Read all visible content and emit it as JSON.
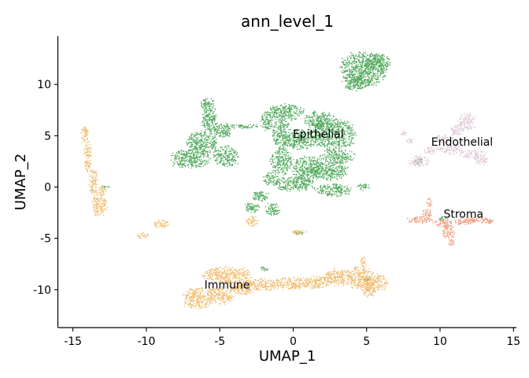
{
  "chart_data": {
    "type": "scatter",
    "title": "ann_level_1",
    "xlabel": "UMAP_1",
    "ylabel": "UMAP_2",
    "xlim": [
      -16,
      15.2
    ],
    "ylim": [
      -13.7,
      14.7
    ],
    "xticks": [
      -15,
      -10,
      -5,
      0,
      5,
      10,
      15
    ],
    "yticks": [
      -10,
      -5,
      0,
      5,
      10
    ],
    "grid": false,
    "legend": "none",
    "series": [
      {
        "color": "#4fa85a",
        "blobs": [
          {
            "x": 4.8,
            "y": 11.5,
            "rx": 1.5,
            "ry": 1.6
          },
          {
            "x": 5.8,
            "y": 12.2,
            "rx": 0.8,
            "ry": 0.8
          },
          {
            "x": 4.3,
            "y": 10.2,
            "rx": 0.9,
            "ry": 0.8
          },
          {
            "x": -7.0,
            "y": 2.8,
            "rx": 1.3,
            "ry": 0.9
          },
          {
            "x": -6.2,
            "y": 4.3,
            "rx": 1.0,
            "ry": 1.1
          },
          {
            "x": -5.7,
            "y": 6.5,
            "rx": 0.5,
            "ry": 1.2
          },
          {
            "x": -5.8,
            "y": 8.0,
            "rx": 0.5,
            "ry": 0.6
          },
          {
            "x": -4.8,
            "y": 5.5,
            "rx": 0.6,
            "ry": 0.7
          },
          {
            "x": -4.6,
            "y": 3.0,
            "rx": 0.8,
            "ry": 1.0
          },
          {
            "x": -3.5,
            "y": 5.9,
            "rx": 1.2,
            "ry": 0.2
          },
          {
            "x": -1.8,
            "y": 6.4,
            "rx": 0.4,
            "ry": 0.9
          },
          {
            "x": -0.5,
            "y": 7.3,
            "rx": 1.2,
            "ry": 0.8
          },
          {
            "x": 1.8,
            "y": 6.5,
            "rx": 1.0,
            "ry": 0.8
          },
          {
            "x": 2.7,
            "y": 5.2,
            "rx": 1.5,
            "ry": 1.4
          },
          {
            "x": -0.8,
            "y": 5.2,
            "rx": 0.6,
            "ry": 1.4
          },
          {
            "x": 0.5,
            "y": 4.6,
            "rx": 1.1,
            "ry": 0.9
          },
          {
            "x": -0.8,
            "y": 2.5,
            "rx": 0.7,
            "ry": 1.2
          },
          {
            "x": 1.0,
            "y": 1.8,
            "rx": 1.0,
            "ry": 1.2
          },
          {
            "x": 2.5,
            "y": 1.6,
            "rx": 1.2,
            "ry": 0.9
          },
          {
            "x": 3.0,
            "y": 3.0,
            "rx": 1.1,
            "ry": 0.7
          },
          {
            "x": 0.1,
            "y": 0.3,
            "rx": 1.3,
            "ry": 0.7
          },
          {
            "x": 2.8,
            "y": -0.3,
            "rx": 1.2,
            "ry": 0.6
          },
          {
            "x": 4.8,
            "y": 0.0,
            "rx": 0.4,
            "ry": 0.3
          },
          {
            "x": -1.5,
            "y": 0.8,
            "rx": 0.5,
            "ry": 0.6
          },
          {
            "x": -2.2,
            "y": -0.9,
            "rx": 0.6,
            "ry": 0.5
          },
          {
            "x": -2.8,
            "y": -2.0,
            "rx": 0.5,
            "ry": 0.5
          },
          {
            "x": -1.4,
            "y": -2.2,
            "rx": 0.5,
            "ry": 0.6
          },
          {
            "x": 0.4,
            "y": -4.5,
            "rx": 0.3,
            "ry": 0.2
          },
          {
            "x": 8.5,
            "y": 2.5,
            "rx": 0.3,
            "ry": 0.3
          },
          {
            "x": 10.2,
            "y": -3.1,
            "rx": 0.25,
            "ry": 0.2
          },
          {
            "x": -2.0,
            "y": -8.0,
            "rx": 0.3,
            "ry": 0.2
          },
          {
            "x": 5.0,
            "y": -9.0,
            "rx": 0.2,
            "ry": 0.2
          },
          {
            "x": -12.8,
            "y": 0.0,
            "rx": 0.3,
            "ry": 0.15
          }
        ]
      },
      {
        "color": "#f0bb6d",
        "blobs": [
          {
            "x": -14.2,
            "y": 5.2,
            "rx": 0.25,
            "ry": 0.8
          },
          {
            "x": -14.0,
            "y": 3.0,
            "rx": 0.25,
            "ry": 1.4
          },
          {
            "x": -13.6,
            "y": 0.5,
            "rx": 0.3,
            "ry": 1.2
          },
          {
            "x": -13.2,
            "y": -1.7,
            "rx": 0.5,
            "ry": 1.1
          },
          {
            "x": -13.0,
            "y": -0.3,
            "rx": 0.3,
            "ry": 0.4
          },
          {
            "x": -10.3,
            "y": -4.7,
            "rx": 0.4,
            "ry": 0.3
          },
          {
            "x": -9.0,
            "y": -3.6,
            "rx": 0.5,
            "ry": 0.4
          },
          {
            "x": -2.8,
            "y": -3.3,
            "rx": 0.4,
            "ry": 0.5
          },
          {
            "x": 0.4,
            "y": -4.4,
            "rx": 0.5,
            "ry": 0.25
          },
          {
            "x": -6.5,
            "y": -10.8,
            "rx": 1.0,
            "ry": 1.0
          },
          {
            "x": -5.0,
            "y": -10.6,
            "rx": 0.9,
            "ry": 0.8
          },
          {
            "x": -4.5,
            "y": -8.6,
            "rx": 1.6,
            "ry": 0.8
          },
          {
            "x": -3.5,
            "y": -9.8,
            "rx": 0.8,
            "ry": 0.7
          },
          {
            "x": -2.2,
            "y": -9.5,
            "rx": 1.1,
            "ry": 0.6
          },
          {
            "x": -0.2,
            "y": -9.4,
            "rx": 1.1,
            "ry": 0.6
          },
          {
            "x": 1.6,
            "y": -9.3,
            "rx": 0.9,
            "ry": 0.6
          },
          {
            "x": 3.1,
            "y": -8.8,
            "rx": 1.0,
            "ry": 0.8
          },
          {
            "x": 4.6,
            "y": -8.9,
            "rx": 0.9,
            "ry": 1.1
          },
          {
            "x": 5.6,
            "y": -9.3,
            "rx": 0.8,
            "ry": 0.8
          },
          {
            "x": 5.2,
            "y": -10.3,
            "rx": 0.5,
            "ry": 0.4
          },
          {
            "x": 4.8,
            "y": -7.3,
            "rx": 0.2,
            "ry": 0.5
          }
        ]
      },
      {
        "color": "#e2cad8",
        "blobs": [
          {
            "x": 11.8,
            "y": 6.4,
            "rx": 0.6,
            "ry": 0.8
          },
          {
            "x": 11.1,
            "y": 5.5,
            "rx": 0.5,
            "ry": 0.5
          },
          {
            "x": 10.3,
            "y": 4.7,
            "rx": 0.6,
            "ry": 0.4
          },
          {
            "x": 10.8,
            "y": 3.7,
            "rx": 0.8,
            "ry": 0.5
          },
          {
            "x": 12.2,
            "y": 3.2,
            "rx": 0.9,
            "ry": 0.4
          },
          {
            "x": 12.8,
            "y": 2.6,
            "rx": 0.5,
            "ry": 0.4
          },
          {
            "x": 9.4,
            "y": 3.6,
            "rx": 0.5,
            "ry": 0.4
          },
          {
            "x": 8.6,
            "y": 2.5,
            "rx": 0.7,
            "ry": 0.5
          },
          {
            "x": 8.0,
            "y": 4.5,
            "rx": 0.3,
            "ry": 0.3
          },
          {
            "x": 7.5,
            "y": 5.2,
            "rx": 0.2,
            "ry": 0.3
          }
        ]
      },
      {
        "color": "#ef9b7e",
        "blobs": [
          {
            "x": 9.3,
            "y": -1.5,
            "rx": 0.2,
            "ry": 0.4
          },
          {
            "x": 9.1,
            "y": -2.6,
            "rx": 0.3,
            "ry": 0.5
          },
          {
            "x": 8.6,
            "y": -3.2,
            "rx": 0.9,
            "ry": 0.3
          },
          {
            "x": 10.2,
            "y": -3.5,
            "rx": 0.6,
            "ry": 0.4
          },
          {
            "x": 10.6,
            "y": -4.4,
            "rx": 0.4,
            "ry": 0.7
          },
          {
            "x": 10.8,
            "y": -5.4,
            "rx": 0.2,
            "ry": 0.4
          },
          {
            "x": 11.6,
            "y": -3.4,
            "rx": 0.7,
            "ry": 0.3
          },
          {
            "x": 12.6,
            "y": -3.2,
            "rx": 0.8,
            "ry": 0.3
          },
          {
            "x": 13.3,
            "y": -3.3,
            "rx": 0.4,
            "ry": 0.25
          }
        ]
      }
    ],
    "annotations": [
      {
        "text": "Epithelial",
        "x": 1.7,
        "y": 5.2
      },
      {
        "text": "Endothelial",
        "x": 11.5,
        "y": 4.4
      },
      {
        "text": "Stroma",
        "x": 11.6,
        "y": -2.6
      },
      {
        "text": "Immune",
        "x": -4.5,
        "y": -9.5
      }
    ]
  }
}
